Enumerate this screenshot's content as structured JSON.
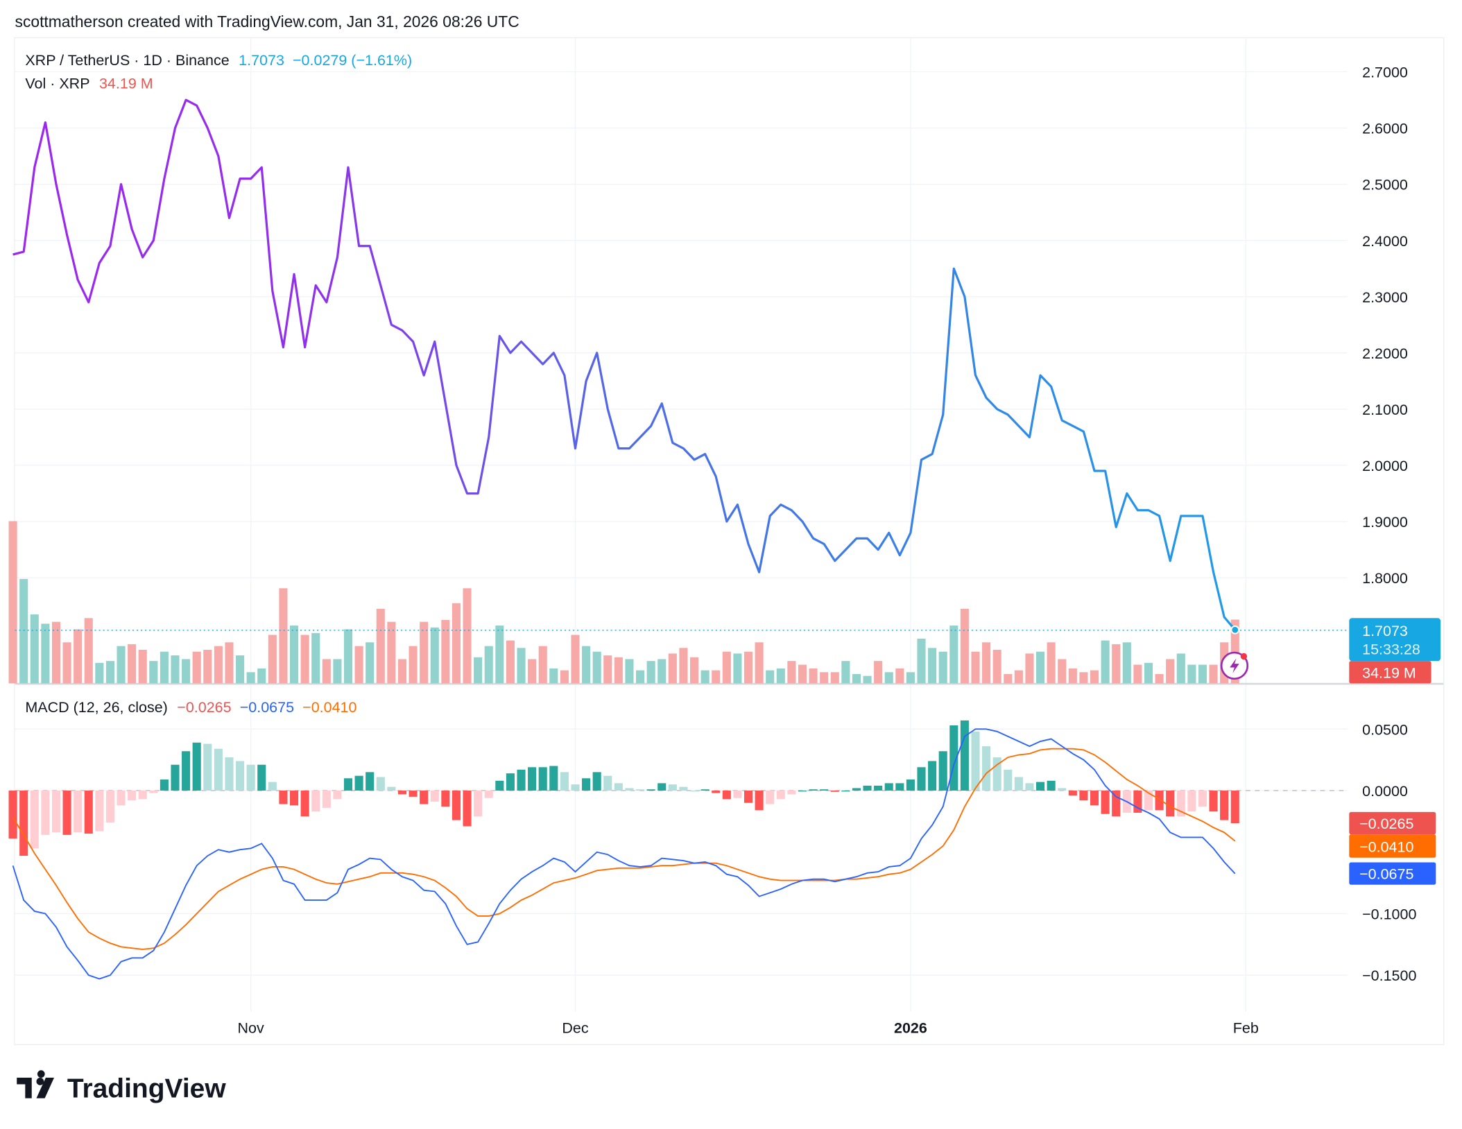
{
  "attribution": "scottmatherson created with TradingView.com, Jan 31, 2026 08:26 UTC",
  "legend": {
    "symbol": "XRP / TetherUS · 1D · Binance",
    "price": "1.7073",
    "change": "−0.0279 (−1.61%)",
    "vol_label": "Vol · XRP",
    "vol_value": "34.19 M",
    "macd_label": "MACD (12, 26, close)",
    "macd_hist": "−0.0265",
    "macd_line": "−0.0675",
    "macd_signal": "−0.0410"
  },
  "tags": {
    "price": "1.7073",
    "countdown": "15:33:28",
    "volume": "34.19 M",
    "hist": "−0.0265",
    "signal": "−0.0410",
    "macd": "−0.0675"
  },
  "logo": "TradingView",
  "colors": {
    "price_start": "#9c27f0",
    "price_end": "#1e9be8",
    "up": "#26a69a",
    "up_light": "#b2dfdb",
    "down": "#ff5252",
    "down_light": "#ffcdd2",
    "vol_up": "#92d2cc",
    "vol_down": "#f7a9a7",
    "macd": "#2962ff",
    "signal": "#ff6d00",
    "last_price": "#17a7e2",
    "vol_tag": "#ef5350"
  },
  "chart_data": [
    {
      "type": "line",
      "title": "XRP / TetherUS · 1D · Binance",
      "ylim": [
        1.7,
        2.75
      ],
      "yticks": [
        "2.7000",
        "2.6000",
        "2.5000",
        "2.4000",
        "2.3000",
        "2.2000",
        "2.1000",
        "2.0000",
        "1.9000",
        "1.8000"
      ],
      "xticks": [
        {
          "label": "Nov",
          "date": "2025-11-01"
        },
        {
          "label": "Dec",
          "date": "2025-12-01"
        },
        {
          "label": "2026",
          "date": "2026-01-01",
          "bold": true
        },
        {
          "label": "Feb",
          "date": "2026-02-01"
        }
      ],
      "x": [
        "2025-10-10",
        "2025-10-11",
        "2025-10-12",
        "2025-10-13",
        "2025-10-14",
        "2025-10-15",
        "2025-10-16",
        "2025-10-17",
        "2025-10-18",
        "2025-10-19",
        "2025-10-20",
        "2025-10-21",
        "2025-10-22",
        "2025-10-23",
        "2025-10-24",
        "2025-10-25",
        "2025-10-26",
        "2025-10-27",
        "2025-10-28",
        "2025-10-29",
        "2025-10-30",
        "2025-10-31",
        "2025-11-01",
        "2025-11-02",
        "2025-11-03",
        "2025-11-04",
        "2025-11-05",
        "2025-11-06",
        "2025-11-07",
        "2025-11-08",
        "2025-11-09",
        "2025-11-10",
        "2025-11-11",
        "2025-11-12",
        "2025-11-13",
        "2025-11-14",
        "2025-11-15",
        "2025-11-16",
        "2025-11-17",
        "2025-11-18",
        "2025-11-19",
        "2025-11-20",
        "2025-11-21",
        "2025-11-22",
        "2025-11-23",
        "2025-11-24",
        "2025-11-25",
        "2025-11-26",
        "2025-11-27",
        "2025-11-28",
        "2025-11-29",
        "2025-11-30",
        "2025-12-01",
        "2025-12-02",
        "2025-12-03",
        "2025-12-04",
        "2025-12-05",
        "2025-12-06",
        "2025-12-07",
        "2025-12-08",
        "2025-12-09",
        "2025-12-10",
        "2025-12-11",
        "2025-12-12",
        "2025-12-13",
        "2025-12-14",
        "2025-12-15",
        "2025-12-16",
        "2025-12-17",
        "2025-12-18",
        "2025-12-19",
        "2025-12-20",
        "2025-12-21",
        "2025-12-22",
        "2025-12-23",
        "2025-12-24",
        "2025-12-25",
        "2025-12-26",
        "2025-12-27",
        "2025-12-28",
        "2025-12-29",
        "2025-12-30",
        "2025-12-31",
        "2026-01-01",
        "2026-01-02",
        "2026-01-03",
        "2026-01-04",
        "2026-01-05",
        "2026-01-06",
        "2026-01-07",
        "2026-01-08",
        "2026-01-09",
        "2026-01-10",
        "2026-01-11",
        "2026-01-12",
        "2026-01-13",
        "2026-01-14",
        "2026-01-15",
        "2026-01-16",
        "2026-01-17",
        "2026-01-18",
        "2026-01-19",
        "2026-01-20",
        "2026-01-21",
        "2026-01-22",
        "2026-01-23",
        "2026-01-24",
        "2026-01-25",
        "2026-01-26",
        "2026-01-27",
        "2026-01-28",
        "2026-01-29",
        "2026-01-30",
        "2026-01-31"
      ],
      "series": [
        {
          "name": "XRP / TetherUS",
          "values": [
            2.375,
            2.38,
            2.53,
            2.61,
            2.5,
            2.41,
            2.33,
            2.29,
            2.36,
            2.39,
            2.5,
            2.42,
            2.37,
            2.4,
            2.51,
            2.6,
            2.65,
            2.64,
            2.6,
            2.55,
            2.44,
            2.51,
            2.51,
            2.53,
            2.31,
            2.21,
            2.34,
            2.21,
            2.32,
            2.29,
            2.37,
            2.53,
            2.39,
            2.39,
            2.32,
            2.25,
            2.24,
            2.22,
            2.16,
            2.22,
            2.11,
            2.0,
            1.95,
            1.95,
            2.05,
            2.23,
            2.2,
            2.22,
            2.2,
            2.18,
            2.2,
            2.16,
            2.03,
            2.15,
            2.2,
            2.1,
            2.03,
            2.03,
            2.05,
            2.07,
            2.11,
            2.04,
            2.03,
            2.01,
            2.02,
            1.98,
            1.9,
            1.93,
            1.86,
            1.81,
            1.91,
            1.93,
            1.92,
            1.9,
            1.87,
            1.86,
            1.83,
            1.85,
            1.87,
            1.87,
            1.85,
            1.88,
            1.84,
            1.88,
            2.01,
            2.02,
            2.09,
            2.35,
            2.3,
            2.16,
            2.12,
            2.1,
            2.09,
            2.07,
            2.05,
            2.16,
            2.14,
            2.08,
            2.07,
            2.06,
            1.99,
            1.99,
            1.89,
            1.95,
            1.92,
            1.92,
            1.91,
            1.83,
            1.91,
            1.91,
            1.91,
            1.81,
            1.73,
            1.7073
          ]
        },
        {
          "name": "Vol · XRP",
          "unit": "M",
          "values": [
            87,
            56,
            37,
            32,
            33,
            22,
            29,
            35,
            11,
            12,
            20,
            21,
            18,
            12,
            17,
            15,
            13,
            17,
            18,
            20,
            22,
            15,
            6,
            8,
            26,
            51,
            31,
            26,
            27,
            13,
            13,
            29,
            20,
            22,
            40,
            33,
            13,
            20,
            33,
            30,
            34,
            43,
            51,
            14,
            20,
            31,
            23,
            19,
            13,
            20,
            8,
            7,
            26,
            20,
            17,
            15,
            14,
            13,
            7,
            12,
            13,
            16,
            19,
            14,
            7,
            7,
            17,
            16,
            17,
            22,
            7,
            8,
            12,
            10,
            8,
            6,
            6,
            12,
            5,
            4,
            12,
            6,
            8,
            6,
            24,
            19,
            17,
            31,
            40,
            17,
            22,
            18,
            5,
            7,
            16,
            17,
            22,
            13,
            8,
            6,
            7,
            23,
            21,
            22,
            10,
            11,
            5,
            13,
            16,
            10,
            10,
            10,
            22,
            34.19
          ]
        }
      ]
    },
    {
      "type": "line",
      "title": "MACD (12, 26, close)",
      "ylim": [
        -0.16,
        0.065
      ],
      "yticks": [
        "0.0500",
        "0.0000",
        "−0.1000",
        "−0.1500"
      ],
      "series": [
        {
          "name": "MACD",
          "values": [
            -0.061,
            -0.089,
            -0.098,
            -0.1,
            -0.111,
            -0.127,
            -0.138,
            -0.15,
            -0.153,
            -0.15,
            -0.139,
            -0.136,
            -0.136,
            -0.13,
            -0.115,
            -0.096,
            -0.077,
            -0.061,
            -0.053,
            -0.048,
            -0.05,
            -0.048,
            -0.047,
            -0.043,
            -0.055,
            -0.073,
            -0.076,
            -0.089,
            -0.089,
            -0.089,
            -0.083,
            -0.064,
            -0.06,
            -0.055,
            -0.056,
            -0.064,
            -0.07,
            -0.073,
            -0.081,
            -0.082,
            -0.092,
            -0.11,
            -0.125,
            -0.123,
            -0.108,
            -0.092,
            -0.081,
            -0.072,
            -0.066,
            -0.061,
            -0.055,
            -0.058,
            -0.066,
            -0.058,
            -0.05,
            -0.052,
            -0.057,
            -0.061,
            -0.062,
            -0.061,
            -0.055,
            -0.056,
            -0.057,
            -0.059,
            -0.058,
            -0.061,
            -0.068,
            -0.07,
            -0.077,
            -0.086,
            -0.083,
            -0.08,
            -0.076,
            -0.073,
            -0.072,
            -0.072,
            -0.074,
            -0.072,
            -0.07,
            -0.067,
            -0.066,
            -0.062,
            -0.061,
            -0.055,
            -0.039,
            -0.028,
            -0.013,
            0.021,
            0.044,
            0.05,
            0.05,
            0.048,
            0.044,
            0.04,
            0.036,
            0.04,
            0.042,
            0.036,
            0.03,
            0.025,
            0.017,
            0.004,
            -0.005,
            -0.009,
            -0.014,
            -0.018,
            -0.023,
            -0.034,
            -0.038,
            -0.038,
            -0.038,
            -0.047,
            -0.058,
            -0.0675
          ]
        },
        {
          "name": "Signal",
          "values": [
            -0.022,
            -0.036,
            -0.051,
            -0.064,
            -0.077,
            -0.091,
            -0.104,
            -0.115,
            -0.12,
            -0.124,
            -0.127,
            -0.128,
            -0.129,
            -0.128,
            -0.124,
            -0.117,
            -0.109,
            -0.1,
            -0.091,
            -0.082,
            -0.077,
            -0.072,
            -0.068,
            -0.064,
            -0.062,
            -0.062,
            -0.064,
            -0.068,
            -0.072,
            -0.075,
            -0.076,
            -0.074,
            -0.072,
            -0.07,
            -0.067,
            -0.067,
            -0.067,
            -0.068,
            -0.07,
            -0.073,
            -0.079,
            -0.086,
            -0.096,
            -0.102,
            -0.102,
            -0.1,
            -0.095,
            -0.089,
            -0.085,
            -0.08,
            -0.075,
            -0.073,
            -0.071,
            -0.068,
            -0.065,
            -0.064,
            -0.063,
            -0.063,
            -0.063,
            -0.062,
            -0.061,
            -0.061,
            -0.06,
            -0.059,
            -0.059,
            -0.059,
            -0.061,
            -0.064,
            -0.067,
            -0.07,
            -0.072,
            -0.073,
            -0.073,
            -0.073,
            -0.073,
            -0.073,
            -0.073,
            -0.072,
            -0.072,
            -0.071,
            -0.07,
            -0.068,
            -0.067,
            -0.064,
            -0.058,
            -0.052,
            -0.045,
            -0.032,
            -0.013,
            0.002,
            0.014,
            0.021,
            0.027,
            0.029,
            0.03,
            0.033,
            0.034,
            0.034,
            0.034,
            0.033,
            0.029,
            0.023,
            0.016,
            0.009,
            0.004,
            -0.002,
            -0.007,
            -0.013,
            -0.017,
            -0.021,
            -0.025,
            -0.03,
            -0.034,
            -0.041
          ]
        }
      ]
    }
  ]
}
